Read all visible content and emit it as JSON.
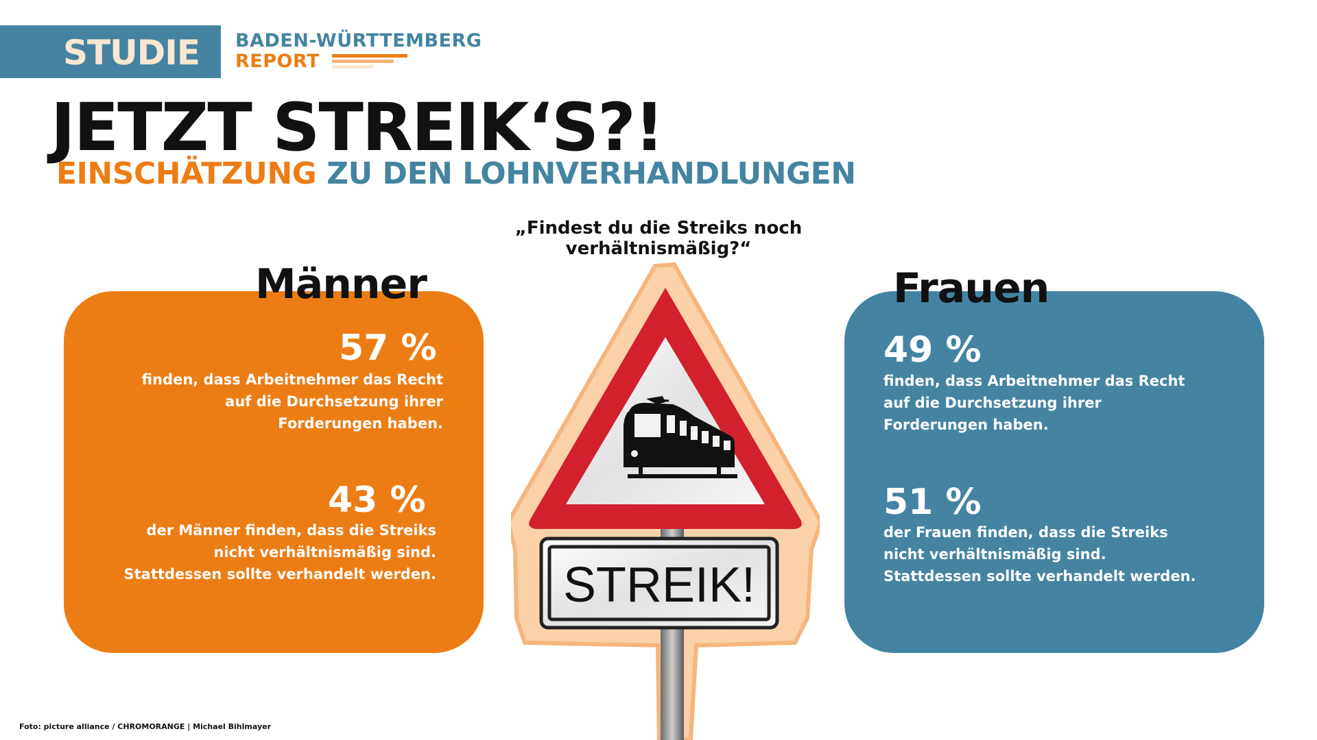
{
  "header": {
    "badge": "STUDIE",
    "report_line1": "BADEN-WÜRTTEMBERG",
    "report_line2": "REPORT"
  },
  "headline": "JETZT STREIK‘S?!",
  "subline": {
    "part1": "EINSCHÄTZUNG",
    "part2": "ZU DEN LOHNVERHANDLUNGEN"
  },
  "question": "„Findest du die Streiks noch verhältnismäßig?“",
  "sign": {
    "label": "STREIK!"
  },
  "men": {
    "title": "Männer",
    "stat1_value": "57 %",
    "stat1_text": "finden, dass Arbeitnehmer das Recht auf die Durchsetzung ihrer Forderungen haben.",
    "stat2_value": "43 %",
    "stat2_text": "der Männer finden, dass die Streiks nicht verhältnismäßig sind. Stattdessen sollte verhandelt werden."
  },
  "women": {
    "title": "Frauen",
    "stat1_value": "49 %",
    "stat1_text": "finden, dass Arbeitnehmer das Recht auf die Durchsetzung ihrer Forderungen haben.",
    "stat2_value": "51 %",
    "stat2_text": "der Frauen finden, dass die Streiks nicht verhältnismäßig sind. Stattdessen sollte verhandelt werden."
  },
  "credit": "Foto: picture alliance / CHROMORANGE | Michael Bihlmayer",
  "colors": {
    "orange": "#ec7d14",
    "blue": "#4484a2",
    "cream": "#fbe6cf",
    "sign_red": "#d3202d"
  }
}
